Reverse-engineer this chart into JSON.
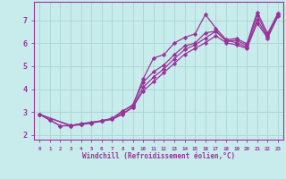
{
  "xlabel": "Windchill (Refroidissement éolien,°C)",
  "bg_color": "#c8ecec",
  "grid_color": "#aad4d4",
  "line_color": "#993399",
  "xlim": [
    -0.5,
    23.5
  ],
  "ylim": [
    1.8,
    7.8
  ],
  "xticks": [
    0,
    1,
    2,
    3,
    4,
    5,
    6,
    7,
    8,
    9,
    10,
    11,
    12,
    13,
    14,
    15,
    16,
    17,
    18,
    19,
    20,
    21,
    22,
    23
  ],
  "yticks": [
    2,
    3,
    4,
    5,
    6,
    7
  ],
  "lines": [
    {
      "x": [
        0,
        1,
        2,
        3,
        4,
        5,
        6,
        7,
        8,
        9,
        10,
        11,
        12,
        13,
        14,
        15,
        16,
        17,
        18,
        19,
        20,
        21,
        22,
        23
      ],
      "y": [
        2.9,
        2.65,
        2.4,
        2.4,
        2.5,
        2.55,
        2.62,
        2.72,
        3.05,
        3.28,
        4.45,
        5.35,
        5.5,
        6.0,
        6.25,
        6.4,
        7.25,
        6.65,
        6.15,
        6.2,
        5.97,
        7.35,
        6.42,
        7.3
      ]
    },
    {
      "x": [
        0,
        1,
        2,
        3,
        4,
        5,
        6,
        7,
        8,
        9,
        10,
        11,
        12,
        13,
        14,
        15,
        16,
        17,
        18,
        19,
        20,
        21,
        22,
        23
      ],
      "y": [
        2.9,
        2.65,
        2.4,
        2.42,
        2.48,
        2.55,
        2.62,
        2.72,
        3.02,
        3.32,
        4.3,
        4.75,
        5.05,
        5.5,
        5.88,
        6.0,
        6.45,
        6.52,
        6.1,
        6.12,
        5.9,
        7.22,
        6.32,
        7.28
      ]
    },
    {
      "x": [
        0,
        3,
        4,
        5,
        6,
        7,
        8,
        9,
        10,
        11,
        12,
        13,
        14,
        15,
        16,
        17,
        18,
        19,
        20,
        21,
        22,
        23
      ],
      "y": [
        2.9,
        2.42,
        2.47,
        2.53,
        2.62,
        2.7,
        2.93,
        3.22,
        4.08,
        4.52,
        4.88,
        5.32,
        5.72,
        5.92,
        6.22,
        6.52,
        6.12,
        6.02,
        5.82,
        7.02,
        6.27,
        7.22
      ]
    },
    {
      "x": [
        0,
        3,
        4,
        5,
        6,
        7,
        8,
        9,
        10,
        11,
        12,
        13,
        14,
        15,
        16,
        17,
        18,
        19,
        20,
        21,
        22,
        23
      ],
      "y": [
        2.9,
        2.4,
        2.45,
        2.52,
        2.6,
        2.68,
        2.9,
        3.2,
        3.92,
        4.32,
        4.72,
        5.12,
        5.52,
        5.77,
        6.02,
        6.32,
        6.02,
        5.92,
        5.77,
        6.87,
        6.22,
        7.17
      ]
    }
  ]
}
